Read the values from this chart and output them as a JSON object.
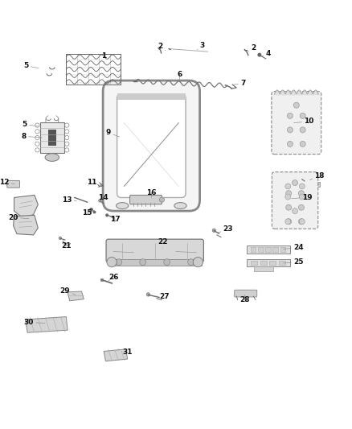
{
  "bg_color": "#ffffff",
  "line_color": "#666666",
  "label_color": "#111111",
  "label_fontsize": 6.5,
  "fig_w": 4.38,
  "fig_h": 5.33,
  "dpi": 100,
  "parts_labels": {
    "1": [
      0.295,
      0.928,
      0.295,
      0.95
    ],
    "2a": [
      0.47,
      0.965,
      0.455,
      0.978
    ],
    "3": [
      0.56,
      0.968,
      0.575,
      0.98
    ],
    "2b": [
      0.7,
      0.96,
      0.72,
      0.972
    ],
    "4": [
      0.74,
      0.948,
      0.762,
      0.956
    ],
    "5a": [
      0.11,
      0.915,
      0.075,
      0.922
    ],
    "6": [
      0.51,
      0.882,
      0.51,
      0.898
    ],
    "7": [
      0.66,
      0.868,
      0.69,
      0.872
    ],
    "5b": [
      0.11,
      0.75,
      0.07,
      0.756
    ],
    "8": [
      0.12,
      0.718,
      0.068,
      0.722
    ],
    "9": [
      0.34,
      0.72,
      0.308,
      0.732
    ],
    "10": [
      0.835,
      0.76,
      0.878,
      0.764
    ],
    "11": [
      0.285,
      0.582,
      0.262,
      0.591
    ],
    "12": [
      0.042,
      0.586,
      0.012,
      0.591
    ],
    "13": [
      0.218,
      0.538,
      0.19,
      0.54
    ],
    "14": [
      0.288,
      0.532,
      0.292,
      0.548
    ],
    "15": [
      0.268,
      0.512,
      0.248,
      0.505
    ],
    "16": [
      0.43,
      0.548,
      0.43,
      0.562
    ],
    "17": [
      0.31,
      0.495,
      0.328,
      0.487
    ],
    "18": [
      0.88,
      0.598,
      0.908,
      0.61
    ],
    "19": [
      0.828,
      0.545,
      0.872,
      0.549
    ],
    "20": [
      0.082,
      0.488,
      0.038,
      0.492
    ],
    "21": [
      0.178,
      0.428,
      0.188,
      0.412
    ],
    "22": [
      0.462,
      0.405,
      0.462,
      0.422
    ],
    "23": [
      0.618,
      0.448,
      0.648,
      0.458
    ],
    "24": [
      0.805,
      0.402,
      0.848,
      0.406
    ],
    "25": [
      0.805,
      0.362,
      0.848,
      0.365
    ],
    "26": [
      0.302,
      0.308,
      0.322,
      0.322
    ],
    "27": [
      0.442,
      0.268,
      0.468,
      0.268
    ],
    "28": [
      0.695,
      0.272,
      0.695,
      0.258
    ],
    "29": [
      0.215,
      0.272,
      0.185,
      0.284
    ],
    "30": [
      0.128,
      0.192,
      0.082,
      0.194
    ],
    "31": [
      0.335,
      0.118,
      0.362,
      0.11
    ]
  }
}
